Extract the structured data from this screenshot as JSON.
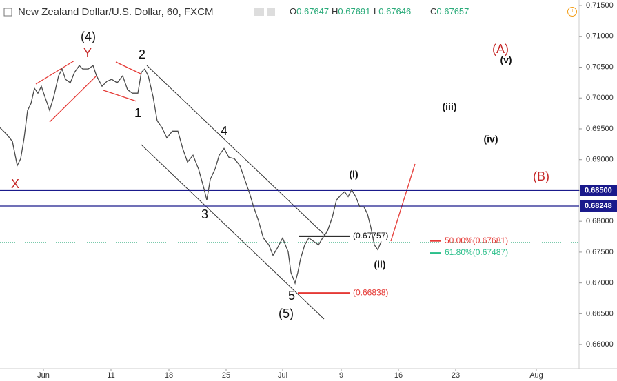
{
  "chart_data": {
    "type": "line",
    "title": "New Zealand Dollar/U.S. Dollar, 60, FXCM",
    "legend_values": [
      {
        "name": "O",
        "value": 0.67647
      },
      {
        "name": "H",
        "value": 0.67691
      },
      {
        "name": "L",
        "value": 0.67646
      },
      {
        "name": "C",
        "value": 0.67657
      }
    ],
    "color": "#4a4a4a",
    "x": [
      0,
      1,
      1.8,
      2.5,
      3,
      3.5,
      4,
      4.5,
      5,
      5.5,
      6,
      6.5,
      7.2,
      7.8,
      8.5,
      9,
      9.5,
      10.2,
      10.8,
      11.5,
      12,
      12.8,
      13.5,
      14,
      14.8,
      15.5,
      16.2,
      17,
      17.8,
      18.5,
      19.2,
      20,
      20.5,
      21,
      21.5,
      22.2,
      22.8,
      23.5,
      24.2,
      25,
      25.8,
      26.5,
      27.2,
      28,
      28.8,
      29.5,
      30,
      30.5,
      31.2,
      31.8,
      32.5,
      33.2,
      34,
      34.8,
      35.5,
      36.2,
      36.8,
      37.5,
      38.2,
      39,
      39.6,
      40.2,
      41,
      41.8,
      42.2,
      42.8,
      43.2,
      43.6,
      44.2,
      44.8,
      45.5,
      46.2,
      46.8,
      47.5,
      48.2,
      48.8,
      49.5,
      50,
      50.5,
      51,
      51.6,
      52.2,
      52.8,
      53.3,
      53.8,
      54.3,
      54.8,
      55.3
    ],
    "values": [
      0.69519,
      0.69407,
      0.69296,
      0.68904,
      0.69016,
      0.69352,
      0.69799,
      0.69911,
      0.70157,
      0.70079,
      0.70191,
      0.70023,
      0.69799,
      0.70023,
      0.70359,
      0.70471,
      0.70303,
      0.70247,
      0.70415,
      0.70526,
      0.70471,
      0.70471,
      0.70526,
      0.70359,
      0.70191,
      0.70269,
      0.70303,
      0.70247,
      0.70359,
      0.70135,
      0.70079,
      0.70079,
      0.70415,
      0.70471,
      0.70359,
      0.70023,
      0.69631,
      0.69519,
      0.69352,
      0.69463,
      0.69463,
      0.69184,
      0.6896,
      0.69072,
      0.68848,
      0.68568,
      0.68344,
      0.6868,
      0.68848,
      0.69072,
      0.69184,
      0.69038,
      0.69016,
      0.68904,
      0.6868,
      0.68456,
      0.68232,
      0.68009,
      0.67729,
      0.67617,
      0.67449,
      0.67561,
      0.67729,
      0.67505,
      0.67169,
      0.66996,
      0.67169,
      0.67393,
      0.67617,
      0.67729,
      0.67673,
      0.67617,
      0.67729,
      0.67841,
      0.68065,
      0.68344,
      0.68434,
      0.68479,
      0.684,
      0.68512,
      0.684,
      0.68232,
      0.68232,
      0.6812,
      0.67897,
      0.67617,
      0.67539,
      0.67673
    ],
    "xlim": [
      0,
      84
    ],
    "xticks": [
      {
        "value": 6.3,
        "label": "Jun"
      },
      {
        "value": 16.1,
        "label": "11"
      },
      {
        "value": 24.5,
        "label": "18"
      },
      {
        "value": 32.8,
        "label": "25"
      },
      {
        "value": 41.0,
        "label": "Jul"
      },
      {
        "value": 49.5,
        "label": "9"
      },
      {
        "value": 57.8,
        "label": "16"
      },
      {
        "value": 66.1,
        "label": "23"
      },
      {
        "value": 77.8,
        "label": "Aug"
      }
    ],
    "ylim": [
      0.6561,
      0.7159
    ],
    "yticks": [
      {
        "value": 0.66,
        "label": "0.66000"
      },
      {
        "value": 0.665,
        "label": "0.66500"
      },
      {
        "value": 0.67,
        "label": "0.67000"
      },
      {
        "value": 0.675,
        "label": "0.67500"
      },
      {
        "value": 0.68,
        "label": "0.68000"
      },
      {
        "value": 0.685,
        "label": "0.68500"
      },
      {
        "value": 0.69,
        "label": "0.69000"
      },
      {
        "value": 0.695,
        "label": "0.69500"
      },
      {
        "value": 0.7,
        "label": "0.70000"
      },
      {
        "value": 0.705,
        "label": "0.70500"
      },
      {
        "value": 0.71,
        "label": "0.71000"
      },
      {
        "value": 0.715,
        "label": "0.71500"
      }
    ],
    "price_levels": [
      {
        "value": 0.685,
        "label": "0.68500",
        "color": "#1a1a8c"
      },
      {
        "value": 0.68248,
        "label": "0.68248",
        "color": "#1a1a8c"
      }
    ],
    "marked_levels": [
      {
        "value": 0.67757,
        "label": "(0.67757)",
        "color": "#111111"
      },
      {
        "value": 0.66838,
        "label": "(0.66838)",
        "color": "#e53935"
      },
      {
        "value": 0.67681,
        "label": "50.00%(0.67681)",
        "color": "#e53935"
      },
      {
        "value": 0.67487,
        "label": "61.80%(0.67487)",
        "color": "#2bbf8a"
      }
    ],
    "annotations": [
      "(4)",
      "Y",
      "2",
      "1",
      "X",
      "3",
      "4",
      "5",
      "(5)",
      "(i)",
      "(ii)",
      "(iii)",
      "(iv)",
      "(v)",
      "(A)",
      "(B)"
    ]
  }
}
